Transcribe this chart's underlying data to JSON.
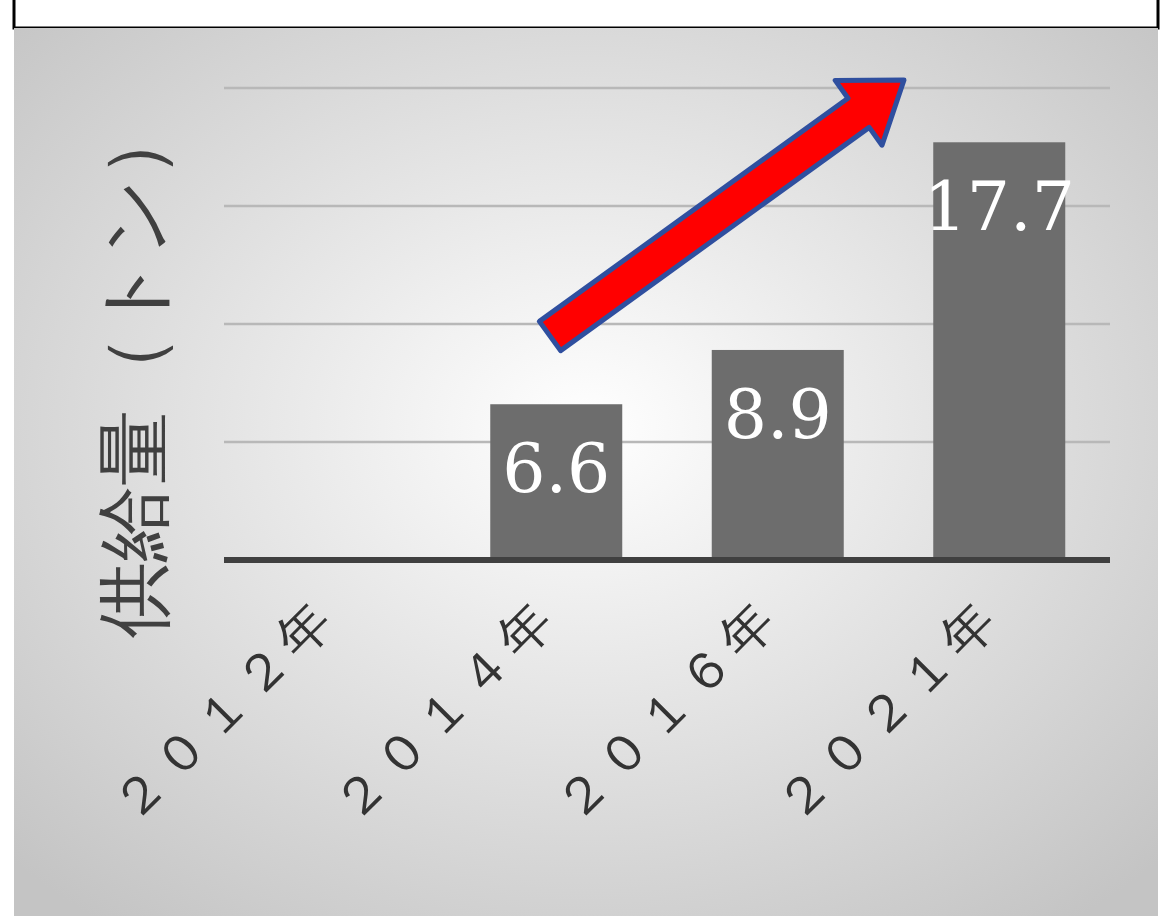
{
  "chart_data": {
    "type": "bar",
    "ylabel": "供給量（トン）",
    "categories": [
      "２０１２年",
      "２０１４年",
      "２０１６年",
      "２０２１年"
    ],
    "values": [
      null,
      6.6,
      8.9,
      17.7
    ],
    "color": "#6d6d6d",
    "value_labels": [
      null,
      "6.6",
      "8.9",
      "17.7"
    ],
    "ylim": [
      0,
      20
    ],
    "yticks": [
      {
        "value": 0,
        "label": null
      },
      {
        "value": 5,
        "label": null
      },
      {
        "value": 10,
        "label": null
      },
      {
        "value": 15,
        "label": null
      },
      {
        "value": 20,
        "label": null
      }
    ],
    "tick_labels": "x",
    "grid": "y"
  }
}
